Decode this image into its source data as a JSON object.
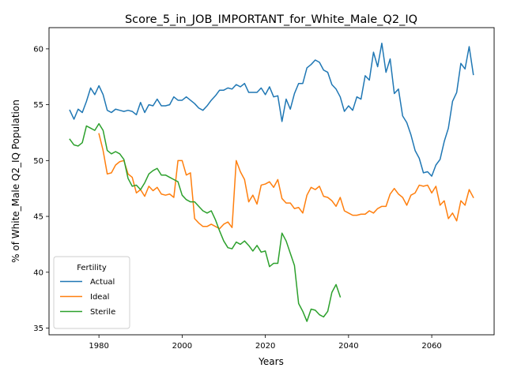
{
  "chart_data": {
    "type": "line",
    "title": "Score_5_in_JOB_IMPORTANT_for_White_Male_Q2_IQ",
    "xlabel": "Years",
    "ylabel": "% of White_Male Q2_IQ Population",
    "xlim": [
      1968,
      2075
    ],
    "ylim": [
      34.4,
      61.9
    ],
    "xticks": [
      1980,
      2000,
      2020,
      2040,
      2060
    ],
    "yticks": [
      35,
      40,
      45,
      50,
      55,
      60
    ],
    "grid": false,
    "legend": {
      "title": "Fertility",
      "placement": "lower-left"
    },
    "series": [
      {
        "name": "Actual",
        "color": "#1f77b4",
        "x": [
          1973,
          1974,
          1975,
          1976,
          1977,
          1978,
          1979,
          1980,
          1981,
          1982,
          1983,
          1984,
          1985,
          1986,
          1987,
          1988,
          1989,
          1990,
          1991,
          1992,
          1993,
          1994,
          1995,
          1996,
          1997,
          1998,
          1999,
          2000,
          2001,
          2002,
          2003,
          2004,
          2005,
          2006,
          2007,
          2008,
          2009,
          2010,
          2011,
          2012,
          2013,
          2014,
          2015,
          2016,
          2017,
          2018,
          2019,
          2020,
          2021,
          2022,
          2023,
          2024,
          2025,
          2026,
          2027,
          2028,
          2029,
          2030,
          2031,
          2032,
          2033,
          2034,
          2035,
          2036,
          2037,
          2038,
          2039,
          2040,
          2041,
          2042,
          2043,
          2044,
          2045,
          2046,
          2047,
          2048,
          2049,
          2050,
          2051,
          2052,
          2053,
          2054,
          2055,
          2056,
          2057,
          2058,
          2059,
          2060,
          2061,
          2062,
          2063,
          2064,
          2065,
          2066,
          2067,
          2068,
          2069,
          2070
        ],
        "values": [
          54.5,
          53.7,
          54.6,
          54.3,
          55.3,
          56.5,
          55.9,
          56.7,
          55.9,
          54.5,
          54.3,
          54.6,
          54.5,
          54.4,
          54.5,
          54.4,
          54.1,
          55.2,
          54.3,
          55.0,
          54.9,
          55.5,
          54.9,
          54.9,
          55.0,
          55.7,
          55.4,
          55.4,
          55.7,
          55.4,
          55.1,
          54.7,
          54.5,
          54.9,
          55.4,
          55.8,
          56.3,
          56.3,
          56.5,
          56.4,
          56.8,
          56.6,
          56.9,
          56.1,
          56.1,
          56.1,
          56.5,
          55.9,
          56.6,
          55.7,
          55.8,
          53.5,
          55.5,
          54.6,
          56.0,
          56.9,
          56.9,
          58.3,
          58.6,
          59.0,
          58.8,
          58.1,
          57.9,
          56.8,
          56.4,
          55.7,
          54.4,
          54.9,
          54.5,
          55.7,
          55.5,
          57.6,
          57.2,
          59.7,
          58.4,
          60.5,
          57.9,
          59.1,
          56.0,
          56.4,
          54.0,
          53.4,
          52.3,
          50.9,
          50.2,
          48.9,
          49.0,
          48.6,
          49.6,
          50.1,
          51.7,
          52.9,
          55.3,
          56.1,
          58.7,
          58.2,
          60.2,
          57.7
        ]
      },
      {
        "name": "Ideal",
        "color": "#ff7f0e",
        "x": [
          1980,
          1981,
          1982,
          1983,
          1984,
          1985,
          1986,
          1987,
          1988,
          1989,
          1990,
          1991,
          1992,
          1993,
          1994,
          1995,
          1996,
          1997,
          1998,
          1999,
          2000,
          2001,
          2002,
          2003,
          2004,
          2005,
          2006,
          2007,
          2008,
          2009,
          2010,
          2011,
          2012,
          2013,
          2014,
          2015,
          2016,
          2017,
          2018,
          2019,
          2020,
          2021,
          2022,
          2023,
          2024,
          2025,
          2026,
          2027,
          2028,
          2029,
          2030,
          2031,
          2032,
          2033,
          2034,
          2035,
          2036,
          2037,
          2038,
          2039,
          2040,
          2041,
          2042,
          2043,
          2044,
          2045,
          2046,
          2047,
          2048,
          2049,
          2050,
          2051,
          2052,
          2053,
          2054,
          2055,
          2056,
          2057,
          2058,
          2059,
          2060,
          2061,
          2062,
          2063,
          2064,
          2065,
          2066,
          2067,
          2068,
          2069,
          2070
        ],
        "values": [
          52.4,
          50.9,
          48.8,
          48.9,
          49.6,
          49.9,
          50.0,
          48.8,
          48.5,
          47.1,
          47.4,
          46.8,
          47.7,
          47.3,
          47.6,
          47.0,
          46.9,
          47.0,
          46.7,
          50.0,
          50.0,
          48.7,
          48.9,
          44.8,
          44.4,
          44.1,
          44.1,
          44.3,
          44.1,
          43.9,
          44.3,
          44.5,
          44.0,
          50.0,
          49.0,
          48.3,
          46.3,
          46.9,
          46.1,
          47.8,
          47.9,
          48.1,
          47.6,
          48.3,
          46.6,
          46.2,
          46.2,
          45.7,
          45.8,
          45.3,
          46.9,
          47.6,
          47.4,
          47.7,
          46.8,
          46.7,
          46.4,
          45.9,
          46.7,
          45.5,
          45.3,
          45.1,
          45.1,
          45.2,
          45.2,
          45.5,
          45.3,
          45.7,
          45.9,
          45.9,
          47.0,
          47.5,
          47.0,
          46.7,
          46.0,
          46.9,
          47.1,
          47.8,
          47.7,
          47.8,
          47.1,
          47.7,
          46.0,
          46.4,
          44.8,
          45.3,
          44.6,
          46.4,
          46.0,
          47.4,
          46.7
        ]
      },
      {
        "name": "Sterile",
        "color": "#2ca02c",
        "x": [
          1973,
          1974,
          1975,
          1976,
          1977,
          1978,
          1979,
          1980,
          1981,
          1982,
          1983,
          1984,
          1985,
          1986,
          1987,
          1988,
          1989,
          1990,
          1991,
          1992,
          1993,
          1994,
          1995,
          1996,
          1997,
          1998,
          1999,
          2000,
          2001,
          2002,
          2003,
          2004,
          2005,
          2006,
          2007,
          2008,
          2009,
          2010,
          2011,
          2012,
          2013,
          2014,
          2015,
          2016,
          2017,
          2018,
          2019,
          2020,
          2021,
          2022,
          2023,
          2024,
          2025,
          2026,
          2027,
          2028,
          2029,
          2030,
          2031,
          2032,
          2033,
          2034,
          2035,
          2036,
          2037,
          2038
        ],
        "values": [
          51.9,
          51.4,
          51.3,
          51.6,
          53.1,
          52.9,
          52.7,
          53.3,
          52.7,
          50.9,
          50.6,
          50.8,
          50.6,
          50.1,
          48.4,
          47.7,
          47.8,
          47.4,
          48.0,
          48.8,
          49.1,
          49.3,
          48.7,
          48.7,
          48.5,
          48.3,
          48.1,
          46.9,
          46.5,
          46.3,
          46.3,
          45.9,
          45.5,
          45.3,
          45.5,
          44.7,
          43.7,
          42.8,
          42.2,
          42.1,
          42.7,
          42.5,
          42.8,
          42.4,
          41.9,
          42.4,
          41.8,
          41.9,
          40.5,
          40.8,
          40.8,
          43.5,
          42.8,
          41.7,
          40.6,
          37.2,
          36.5,
          35.6,
          36.7,
          36.6,
          36.2,
          36.0,
          36.5,
          38.2,
          38.9,
          37.8
        ]
      }
    ]
  }
}
